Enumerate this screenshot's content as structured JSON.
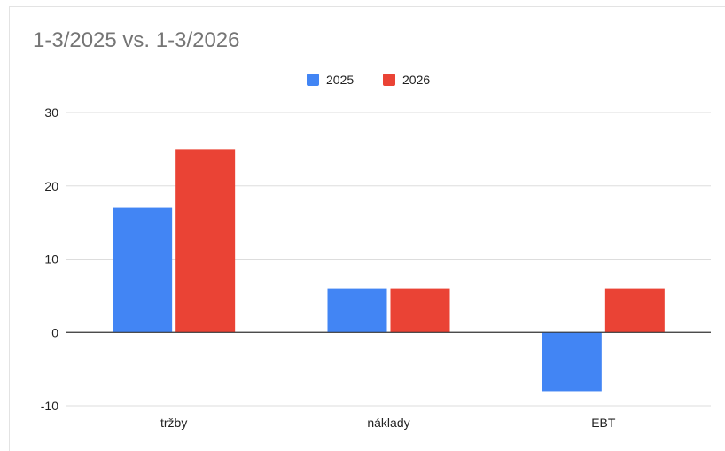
{
  "chart_data": {
    "type": "bar",
    "title": "1-3/2025 vs. 1-3/2026",
    "categories": [
      "tržby",
      "náklady",
      "EBT"
    ],
    "series": [
      {
        "name": "2025",
        "values": [
          17,
          6,
          -8
        ]
      },
      {
        "name": "2026",
        "values": [
          25,
          6,
          6
        ]
      }
    ],
    "ylim": [
      -10,
      30
    ],
    "yticks": [
      "30",
      "20",
      "10",
      "0",
      "-10"
    ],
    "ytick_values": [
      30,
      20,
      10,
      0,
      -10
    ],
    "grid": true,
    "legend": "top",
    "colors": {
      "2025": "#4285f4",
      "2026": "#ea4335"
    }
  }
}
